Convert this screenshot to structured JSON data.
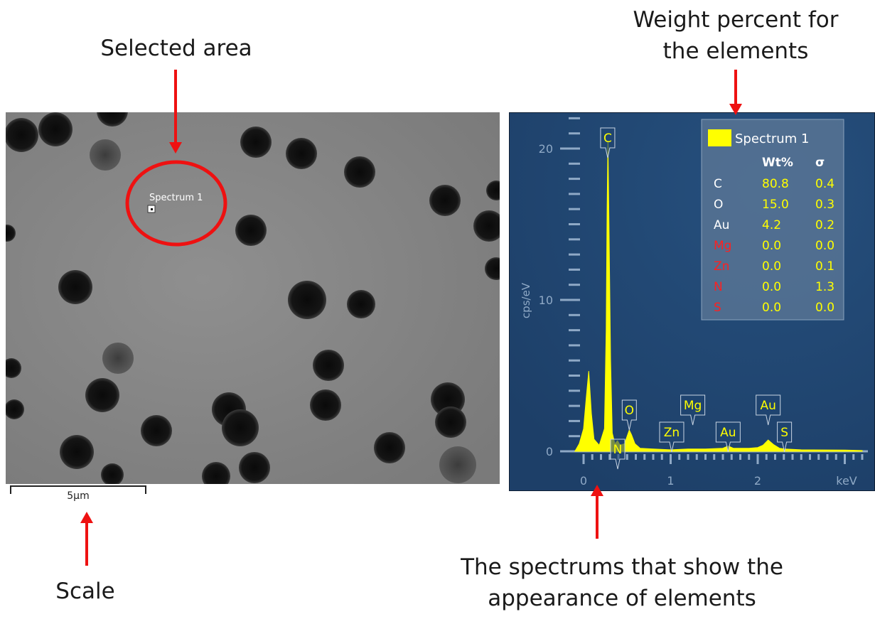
{
  "annotations": {
    "selected_area": "Selected area",
    "weight_percent_line1": "Weight percent for",
    "weight_percent_line2": "the elements",
    "scale": "Scale",
    "spectrums_line1": "The spectrums that show the",
    "spectrums_line2": "appearance of elements"
  },
  "sem_image": {
    "spectrum_label": "Spectrum 1",
    "scale_bar_label": "5µm"
  },
  "spectrum_panel": {
    "y_axis_label": "cps/eV",
    "x_axis_unit": "keV",
    "y_ticks": [
      "0",
      "10",
      "20"
    ],
    "x_ticks": [
      "0",
      "1",
      "2"
    ],
    "peak_labels": [
      {
        "label": "C",
        "energy": 0.277
      },
      {
        "label": "N",
        "energy": 0.392
      },
      {
        "label": "O",
        "energy": 0.525
      },
      {
        "label": "Zn",
        "energy": 1.012
      },
      {
        "label": "Mg",
        "energy": 1.254
      },
      {
        "label": "Au",
        "energy": 1.66
      },
      {
        "label": "Au",
        "energy": 2.12
      },
      {
        "label": "S",
        "energy": 2.307
      }
    ],
    "legend": {
      "series_name": "Spectrum 1",
      "col_wt": "Wt%",
      "col_sigma": "σ",
      "rows": [
        {
          "element": "C",
          "wt": "80.8",
          "sigma": "0.4",
          "detected": true
        },
        {
          "element": "O",
          "wt": "15.0",
          "sigma": "0.3",
          "detected": true
        },
        {
          "element": "Au",
          "wt": "4.2",
          "sigma": "0.2",
          "detected": true
        },
        {
          "element": "Mg",
          "wt": "0.0",
          "sigma": "0.0",
          "detected": false
        },
        {
          "element": "Zn",
          "wt": "0.0",
          "sigma": "0.1",
          "detected": false
        },
        {
          "element": "N",
          "wt": "0.0",
          "sigma": "1.3",
          "detected": false
        },
        {
          "element": "S",
          "wt": "0.0",
          "sigma": "0.0",
          "detected": false
        }
      ]
    },
    "colors": {
      "background": "#1f4470",
      "spectrum": "#ffff00",
      "detected_text": "#ffffff",
      "undetected_text": "#ff2020",
      "value_text": "#ffff00"
    }
  },
  "chart_data": {
    "type": "area",
    "xlabel": "keV",
    "ylabel": "cps/eV",
    "xlim": [
      -0.1,
      3.2
    ],
    "ylim": [
      0,
      22
    ],
    "series": [
      {
        "name": "Spectrum 1",
        "points": [
          [
            -0.1,
            0
          ],
          [
            -0.05,
            0.5
          ],
          [
            0.0,
            1.5
          ],
          [
            0.03,
            3.5
          ],
          [
            0.06,
            5.3
          ],
          [
            0.09,
            2.5
          ],
          [
            0.12,
            0.8
          ],
          [
            0.18,
            0.4
          ],
          [
            0.24,
            1.5
          ],
          [
            0.26,
            8
          ],
          [
            0.27,
            16
          ],
          [
            0.28,
            20.5
          ],
          [
            0.29,
            16
          ],
          [
            0.31,
            6
          ],
          [
            0.33,
            1.2
          ],
          [
            0.36,
            0.5
          ],
          [
            0.39,
            0.7
          ],
          [
            0.42,
            0.4
          ],
          [
            0.47,
            0.5
          ],
          [
            0.5,
            1.0
          ],
          [
            0.525,
            1.4
          ],
          [
            0.55,
            1.1
          ],
          [
            0.59,
            0.5
          ],
          [
            0.65,
            0.2
          ],
          [
            0.8,
            0.15
          ],
          [
            1.0,
            0.1
          ],
          [
            1.2,
            0.15
          ],
          [
            1.4,
            0.15
          ],
          [
            1.6,
            0.2
          ],
          [
            1.66,
            0.35
          ],
          [
            1.72,
            0.2
          ],
          [
            1.9,
            0.2
          ],
          [
            2.0,
            0.25
          ],
          [
            2.06,
            0.4
          ],
          [
            2.12,
            0.75
          ],
          [
            2.18,
            0.45
          ],
          [
            2.25,
            0.2
          ],
          [
            2.31,
            0.15
          ],
          [
            2.5,
            0.1
          ],
          [
            3.0,
            0.08
          ],
          [
            3.2,
            0.05
          ]
        ]
      }
    ]
  }
}
